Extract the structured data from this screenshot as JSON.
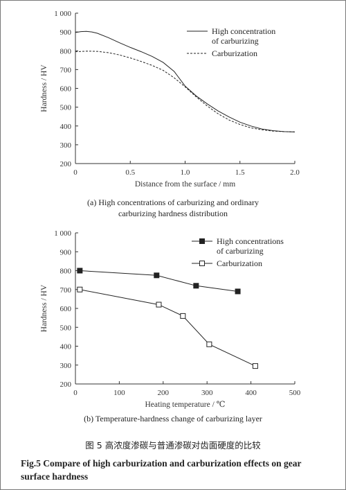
{
  "chart_data": [
    {
      "type": "line",
      "xlabel": "Distance from the surface / mm",
      "ylabel": "Hardness / HV",
      "xlim": [
        0,
        2.0
      ],
      "ylim": [
        200,
        1000
      ],
      "x_ticks": [
        "0",
        "0.5",
        "1.0",
        "1.5",
        "2.0"
      ],
      "y_ticks": [
        "200",
        "300",
        "400",
        "500",
        "600",
        "700",
        "800",
        "900",
        "1 000"
      ],
      "legend_position": "top-right",
      "caption": "(a) High concentrations of carburizing and ordinary carburizing hardness distribution",
      "series": [
        {
          "name": "High concentration of carburizing",
          "style": "solid",
          "x": [
            0,
            0.05,
            0.1,
            0.15,
            0.2,
            0.3,
            0.4,
            0.5,
            0.6,
            0.7,
            0.8,
            0.9,
            1.0,
            1.1,
            1.2,
            1.3,
            1.4,
            1.5,
            1.6,
            1.7,
            1.8,
            1.9,
            2.0
          ],
          "y": [
            897,
            902,
            903,
            900,
            893,
            870,
            843,
            818,
            795,
            770,
            738,
            690,
            612,
            560,
            518,
            480,
            448,
            420,
            400,
            384,
            375,
            370,
            368
          ]
        },
        {
          "name": "Carburization",
          "style": "dashed",
          "x": [
            0,
            0.1,
            0.2,
            0.3,
            0.4,
            0.5,
            0.6,
            0.7,
            0.8,
            0.9,
            1.0,
            1.1,
            1.2,
            1.3,
            1.4,
            1.5,
            1.6,
            1.7,
            1.8,
            1.9,
            2.0
          ],
          "y": [
            795,
            798,
            797,
            790,
            778,
            762,
            743,
            722,
            696,
            656,
            608,
            555,
            507,
            465,
            432,
            408,
            390,
            380,
            373,
            370,
            368
          ]
        }
      ]
    },
    {
      "type": "line",
      "xlabel": "Heating temperature / ℃",
      "ylabel": "Hardness / HV",
      "xlim": [
        0,
        500
      ],
      "ylim": [
        200,
        1000
      ],
      "x_ticks": [
        "0",
        "100",
        "200",
        "300",
        "400",
        "500"
      ],
      "y_ticks": [
        "200",
        "300",
        "400",
        "500",
        "600",
        "700",
        "800",
        "900",
        "1 000"
      ],
      "legend_position": "top-right",
      "caption": "(b) Temperature-hardness change of carburizing layer",
      "series": [
        {
          "name": "High concentrations of carburizing",
          "marker": "filled-square",
          "x": [
            10,
            185,
            275,
            370
          ],
          "y": [
            800,
            775,
            720,
            690
          ]
        },
        {
          "name": "Carburization",
          "marker": "open-square",
          "x": [
            10,
            190,
            245,
            305,
            410
          ],
          "y": [
            700,
            620,
            560,
            410,
            295
          ]
        }
      ]
    }
  ],
  "figure_caption_cn": "图 5   高浓度渗碳与普通渗碳对齿面硬度的比较",
  "figure_caption_en": "Fig.5   Compare of high carburization and carburization effects on gear surface hardness"
}
